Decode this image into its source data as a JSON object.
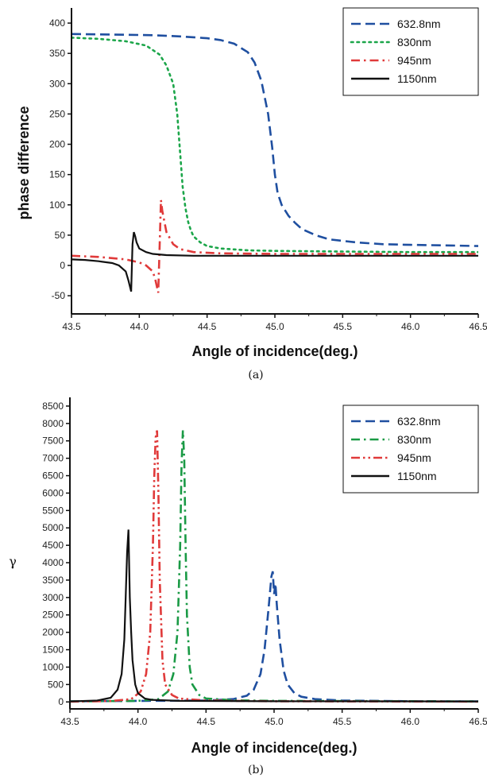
{
  "chart_data": [
    {
      "panel": "a",
      "type": "line",
      "caption": "(a)",
      "xlabel": "Angle of incidence(deg.)",
      "ylabel": "phase difference",
      "xlim": [
        43.5,
        46.5
      ],
      "ylim": [
        -80,
        425
      ],
      "xticks": [
        "43.5",
        "44.0",
        "44.5",
        "45.0",
        "45.5",
        "46.0",
        "46.5"
      ],
      "yticks": [
        "-50",
        "0",
        "50",
        "100",
        "150",
        "200",
        "250",
        "300",
        "350",
        "400"
      ],
      "legend_position": "top-right",
      "series": [
        {
          "name": "632.8nm",
          "color": "#1f4fa0",
          "dash": "dashed",
          "x": [
            43.5,
            43.8,
            44.1,
            44.3,
            44.5,
            44.6,
            44.7,
            44.8,
            44.85,
            44.9,
            44.95,
            44.98,
            45.0,
            45.02,
            45.05,
            45.1,
            45.15,
            45.2,
            45.3,
            45.4,
            45.6,
            45.8,
            46.0,
            46.3,
            46.5
          ],
          "y": [
            382,
            381,
            380,
            378,
            375,
            372,
            366,
            352,
            335,
            305,
            250,
            195,
            150,
            120,
            100,
            82,
            70,
            60,
            50,
            43,
            38,
            35,
            34,
            33,
            32
          ]
        },
        {
          "name": "830nm",
          "color": "#1ca64a",
          "dash": "dotted",
          "x": [
            43.5,
            43.7,
            43.9,
            44.05,
            44.15,
            44.2,
            44.25,
            44.28,
            44.3,
            44.32,
            44.34,
            44.36,
            44.38,
            44.4,
            44.45,
            44.5,
            44.6,
            44.8,
            45.0,
            45.5,
            46.0,
            46.5
          ],
          "y": [
            376,
            374,
            370,
            363,
            348,
            330,
            300,
            250,
            190,
            130,
            95,
            72,
            58,
            48,
            38,
            32,
            28,
            25,
            24,
            23,
            22,
            22
          ]
        },
        {
          "name": "945nm",
          "color": "#e03a3a",
          "dash": "dashdot",
          "x": [
            43.5,
            43.7,
            43.9,
            44.0,
            44.05,
            44.1,
            44.12,
            44.14,
            44.15,
            44.16,
            44.17,
            44.2,
            44.25,
            44.3,
            44.4,
            44.6,
            45.0,
            45.5,
            46.0,
            46.5
          ],
          "y": [
            16,
            14,
            10,
            5,
            0,
            -10,
            -25,
            -45,
            30,
            108,
            90,
            55,
            35,
            27,
            22,
            20,
            19,
            19,
            19,
            19
          ]
        },
        {
          "name": "1150nm",
          "color": "#111111",
          "dash": "solid",
          "x": [
            43.5,
            43.6,
            43.7,
            43.8,
            43.85,
            43.9,
            43.92,
            43.94,
            43.95,
            43.96,
            43.97,
            43.98,
            44.0,
            44.05,
            44.1,
            44.2,
            44.4,
            44.8,
            45.5,
            46.5
          ],
          "y": [
            10,
            9,
            7,
            4,
            0,
            -10,
            -25,
            -43,
            35,
            55,
            48,
            38,
            28,
            22,
            19,
            17,
            16,
            16,
            16,
            16
          ]
        }
      ]
    },
    {
      "panel": "b",
      "type": "line",
      "caption": "(b)",
      "xlabel": "Angle of incidence(deg.)",
      "ylabel": "γ",
      "xlim": [
        43.5,
        46.5
      ],
      "ylim": [
        -200,
        8750
      ],
      "xticks": [
        "43.5",
        "44.0",
        "44.5",
        "45.0",
        "45.5",
        "46.0",
        "46.5"
      ],
      "yticks": [
        "0",
        "500",
        "1000",
        "1500",
        "2000",
        "2500",
        "3000",
        "3500",
        "4000",
        "4500",
        "5000",
        "5500",
        "6000",
        "6500",
        "7000",
        "7500",
        "8000",
        "8500"
      ],
      "legend_position": "top-right",
      "series": [
        {
          "name": "632.8nm",
          "color": "#1f4fa0",
          "dash": "dashed",
          "x": [
            43.5,
            44.5,
            44.7,
            44.8,
            44.85,
            44.9,
            44.93,
            44.96,
            44.98,
            44.99,
            45.0,
            45.01,
            45.02,
            45.04,
            45.07,
            45.1,
            45.15,
            45.2,
            45.3,
            45.5,
            46.0,
            46.5
          ],
          "y": [
            20,
            40,
            80,
            180,
            350,
            800,
            1500,
            2700,
            3600,
            3750,
            3100,
            3400,
            2800,
            1800,
            900,
            500,
            250,
            150,
            80,
            40,
            20,
            15
          ]
        },
        {
          "name": "830nm",
          "color": "#1a9a45",
          "dash": "dashdot",
          "x": [
            43.5,
            44.0,
            44.15,
            44.22,
            44.26,
            44.29,
            44.31,
            44.32,
            44.33,
            44.34,
            44.35,
            44.36,
            44.38,
            44.4,
            44.45,
            44.5,
            44.7,
            45.0,
            46.5
          ],
          "y": [
            15,
            30,
            80,
            300,
            800,
            2000,
            4500,
            6800,
            7800,
            7000,
            4500,
            2500,
            1000,
            500,
            200,
            100,
            50,
            30,
            15
          ]
        },
        {
          "name": "945nm",
          "color": "#e03a3a",
          "dash": "dashdotdot",
          "x": [
            43.5,
            43.8,
            43.95,
            44.02,
            44.06,
            44.09,
            44.11,
            44.12,
            44.13,
            44.14,
            44.15,
            44.16,
            44.18,
            44.2,
            44.25,
            44.3,
            44.5,
            45.0,
            46.5
          ],
          "y": [
            10,
            25,
            80,
            300,
            800,
            2000,
            4500,
            6500,
            7600,
            7800,
            6000,
            3500,
            1200,
            500,
            200,
            100,
            40,
            20,
            10
          ]
        },
        {
          "name": "1150nm",
          "color": "#111111",
          "dash": "solid",
          "x": [
            43.5,
            43.7,
            43.8,
            43.85,
            43.88,
            43.9,
            43.91,
            43.92,
            43.93,
            43.94,
            43.95,
            43.96,
            43.98,
            44.0,
            44.05,
            44.1,
            44.3,
            45.0,
            46.5
          ],
          "y": [
            15,
            40,
            120,
            350,
            800,
            1800,
            3000,
            4300,
            4950,
            3000,
            2000,
            1200,
            500,
            250,
            100,
            60,
            30,
            20,
            15
          ]
        }
      ]
    }
  ]
}
